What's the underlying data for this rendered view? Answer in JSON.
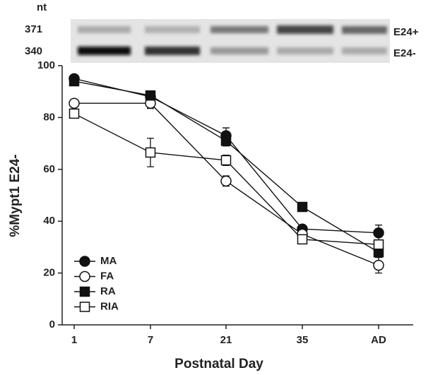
{
  "gel": {
    "size_header": "nt",
    "size_labels": [
      "371",
      "340"
    ],
    "band_labels": [
      "E24+",
      "E24-"
    ]
  },
  "chart_data": {
    "type": "line",
    "xlabel": "Postnatal Day",
    "ylabel": "%Mypt1 E24-",
    "categories": [
      "1",
      "7",
      "21",
      "35",
      "AD"
    ],
    "ylim": [
      0,
      100
    ],
    "yticks": [
      0,
      20,
      40,
      60,
      80,
      100
    ],
    "series": [
      {
        "name": "MA",
        "marker": "circle",
        "filled": true,
        "values": [
          95,
          88,
          73,
          37,
          35.5
        ],
        "errors": [
          1,
          1,
          3,
          1.5,
          3
        ]
      },
      {
        "name": "FA",
        "marker": "circle",
        "filled": false,
        "values": [
          85.5,
          85.5,
          55.5,
          35,
          23
        ],
        "errors": [
          1,
          2,
          2,
          1,
          3
        ]
      },
      {
        "name": "RA",
        "marker": "square",
        "filled": true,
        "values": [
          94,
          88.5,
          71,
          45.5,
          28
        ],
        "errors": [
          1,
          1,
          2,
          1,
          1
        ]
      },
      {
        "name": "RIA",
        "marker": "square",
        "filled": false,
        "values": [
          81.5,
          66.5,
          63.5,
          33,
          31
        ],
        "errors": [
          1.5,
          5.5,
          2,
          1,
          1
        ]
      }
    ]
  }
}
